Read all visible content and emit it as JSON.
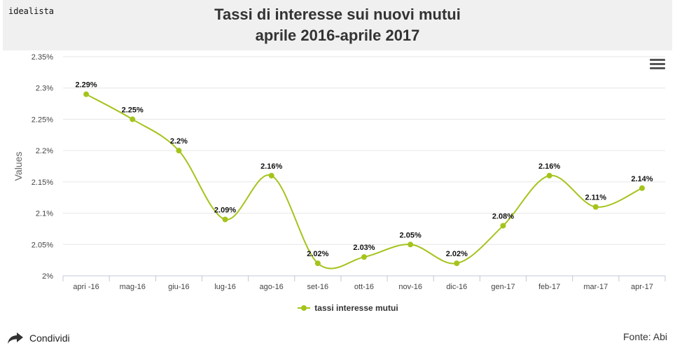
{
  "header": {
    "logo": "idealista",
    "title_line1": "Tassi di interesse sui nuovi mutui",
    "title_line2": "aprile 2016-aprile 2017"
  },
  "footer": {
    "share_label": "Condividi",
    "source": "Fonte: Abi"
  },
  "icons": {
    "menu": "hamburger-menu-icon",
    "share": "share-arrow-icon"
  },
  "chart_data": {
    "type": "line",
    "categories": [
      "apri -16",
      "mag-16",
      "giu-16",
      "lug-16",
      "ago-16",
      "set-16",
      "ott-16",
      "nov-16",
      "dic-16",
      "gen-17",
      "feb-17",
      "mar-17",
      "apr-17"
    ],
    "series": [
      {
        "name": "tassi interesse mutui",
        "values": [
          2.29,
          2.25,
          2.2,
          2.09,
          2.16,
          2.02,
          2.03,
          2.05,
          2.02,
          2.08,
          2.16,
          2.11,
          2.14
        ],
        "color": "#a4c41c"
      }
    ],
    "data_labels": [
      "2.29%",
      "2.25%",
      "2.2%",
      "2.09%",
      "2.16%",
      "2.02%",
      "2.03%",
      "2.05%",
      "2.02%",
      "2.08%",
      "2.16%",
      "2.11%",
      "2.14%"
    ],
    "ylabel": "Values",
    "ylim": [
      2,
      2.35
    ],
    "yticks": [
      2,
      2.05,
      2.1,
      2.15,
      2.2,
      2.25,
      2.3,
      2.35
    ],
    "ytick_labels": [
      "2%",
      "2.05%",
      "2.1%",
      "2.15%",
      "2.2%",
      "2.25%",
      "2.3%",
      "2.35%"
    ],
    "grid": true,
    "legend_position": "bottom-center"
  }
}
